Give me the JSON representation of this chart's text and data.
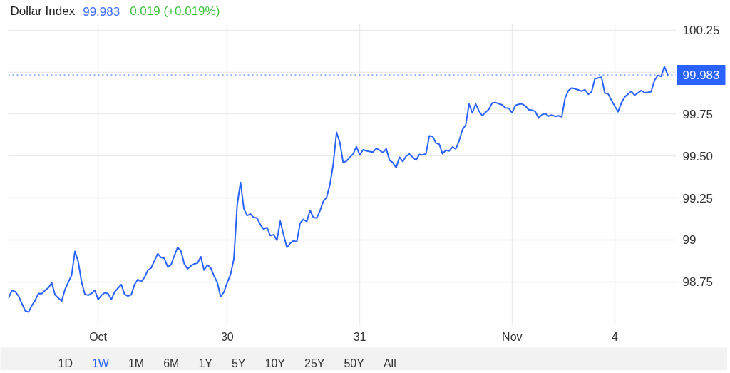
{
  "chart_data": {
    "type": "line",
    "title": "Dollar Index",
    "annotations": [
      "99.983",
      "0.019 (+0.019%)",
      "1D",
      "1W",
      "1M",
      "6M",
      "1Y",
      "5Y",
      "10Y",
      "25Y",
      "50Y",
      "All"
    ],
    "categories": [
      null,
      null,
      null,
      null,
      null,
      null,
      null,
      null,
      null,
      null,
      null,
      null,
      null,
      null,
      null,
      null,
      null,
      null,
      null,
      null,
      null,
      null,
      null,
      null,
      null,
      null,
      null,
      "Oct",
      null,
      null,
      null,
      null,
      null,
      null,
      null,
      null,
      null,
      null,
      null,
      null,
      null,
      null,
      null,
      null,
      null,
      null,
      null,
      null,
      null,
      null,
      null,
      null,
      null,
      null,
      null,
      null,
      null,
      null,
      null,
      null,
      null,
      null,
      null,
      null,
      null,
      null,
      "30",
      null,
      null,
      null,
      null,
      null,
      null,
      null,
      null,
      null,
      null,
      null,
      null,
      null,
      null,
      null,
      null,
      null,
      null,
      null,
      null,
      null,
      null,
      null,
      null,
      null,
      null,
      null,
      null,
      null,
      null,
      null,
      null,
      null,
      null,
      null,
      null,
      null,
      null,
      null,
      "31",
      null,
      null,
      null,
      null,
      null,
      null,
      null,
      null,
      null,
      null,
      null,
      null,
      null,
      null,
      null,
      null,
      null,
      null,
      null,
      null,
      null,
      null,
      null,
      null,
      null,
      null,
      null,
      null,
      null,
      null,
      null,
      null,
      null,
      null,
      null,
      null,
      null,
      null,
      null,
      null,
      null,
      null,
      null,
      null,
      null,
      "Nov",
      null,
      null,
      null,
      null,
      null,
      null,
      null,
      null,
      null,
      null,
      null,
      null,
      null,
      null,
      null,
      null,
      null,
      null,
      null,
      null,
      null,
      null,
      null,
      null,
      null,
      null,
      null,
      null,
      null,
      null,
      "4",
      null,
      null,
      null,
      null,
      null,
      null,
      null,
      null,
      null,
      null,
      null,
      null,
      null,
      null,
      null,
      null
    ],
    "ylim": [
      98.494,
      100.287
    ],
    "yticks": [
      98.75,
      99,
      99.25,
      {
        "value": 99.5,
        "label": "99.50"
      },
      99.75,
      {
        "value": 100,
        "label": null
      },
      100.25
    ],
    "grid": true,
    "ref_lines": [
      {
        "axis": "y",
        "value": 99.983,
        "label": "99.983",
        "color": "#2962ff",
        "line_style": "dotted"
      }
    ],
    "series": [
      {
        "color": "#2962ff",
        "values": [
          98.656,
          98.7,
          98.691,
          98.665,
          98.62,
          98.578,
          98.57,
          98.61,
          98.64,
          98.681,
          98.68,
          98.7,
          98.715,
          98.744,
          98.672,
          98.654,
          98.635,
          98.705,
          98.748,
          98.79,
          98.932,
          98.87,
          98.75,
          98.677,
          98.67,
          98.681,
          98.7,
          98.645,
          98.67,
          98.685,
          98.68,
          98.645,
          98.69,
          98.713,
          98.734,
          98.675,
          98.666,
          98.673,
          98.734,
          98.765,
          98.751,
          98.776,
          98.819,
          98.833,
          98.875,
          98.918,
          98.895,
          98.89,
          98.84,
          98.851,
          98.905,
          98.955,
          98.935,
          98.858,
          98.828,
          98.845,
          98.857,
          98.861,
          98.9,
          98.82,
          98.851,
          98.833,
          98.786,
          98.746,
          98.662,
          98.69,
          98.746,
          98.795,
          98.887,
          99.21,
          99.343,
          99.187,
          99.145,
          99.155,
          99.133,
          99.13,
          99.09,
          99.064,
          99.075,
          99.026,
          99.031,
          98.998,
          99.112,
          99.031,
          98.955,
          98.98,
          98.995,
          98.989,
          99.1,
          99.123,
          99.109,
          99.177,
          99.133,
          99.13,
          99.174,
          99.23,
          99.254,
          99.33,
          99.45,
          99.641,
          99.58,
          99.46,
          99.47,
          99.492,
          99.512,
          99.556,
          99.506,
          99.537,
          99.531,
          99.526,
          99.523,
          99.545,
          99.534,
          99.52,
          99.543,
          99.475,
          99.46,
          99.43,
          99.493,
          99.467,
          99.499,
          99.512,
          99.492,
          99.475,
          99.509,
          99.506,
          99.513,
          99.62,
          99.617,
          99.577,
          99.57,
          99.513,
          99.535,
          99.53,
          99.554,
          99.542,
          99.59,
          99.657,
          99.684,
          99.81,
          99.757,
          99.81,
          99.768,
          99.74,
          99.761,
          99.778,
          99.816,
          99.819,
          99.811,
          99.805,
          99.787,
          99.785,
          99.757,
          99.802,
          99.808,
          99.811,
          99.798,
          99.776,
          99.773,
          99.766,
          99.726,
          99.746,
          99.754,
          99.738,
          99.744,
          99.736,
          99.74,
          99.733,
          99.845,
          99.89,
          99.906,
          99.9,
          99.894,
          99.886,
          99.895,
          99.868,
          99.882,
          99.96,
          99.965,
          99.97,
          99.875,
          99.87,
          99.832,
          99.797,
          99.764,
          99.816,
          99.851,
          99.868,
          99.886,
          99.862,
          99.876,
          99.89,
          99.878,
          99.879,
          99.883,
          99.95,
          99.98,
          99.974,
          100.033,
          99.983
        ]
      }
    ]
  }
}
